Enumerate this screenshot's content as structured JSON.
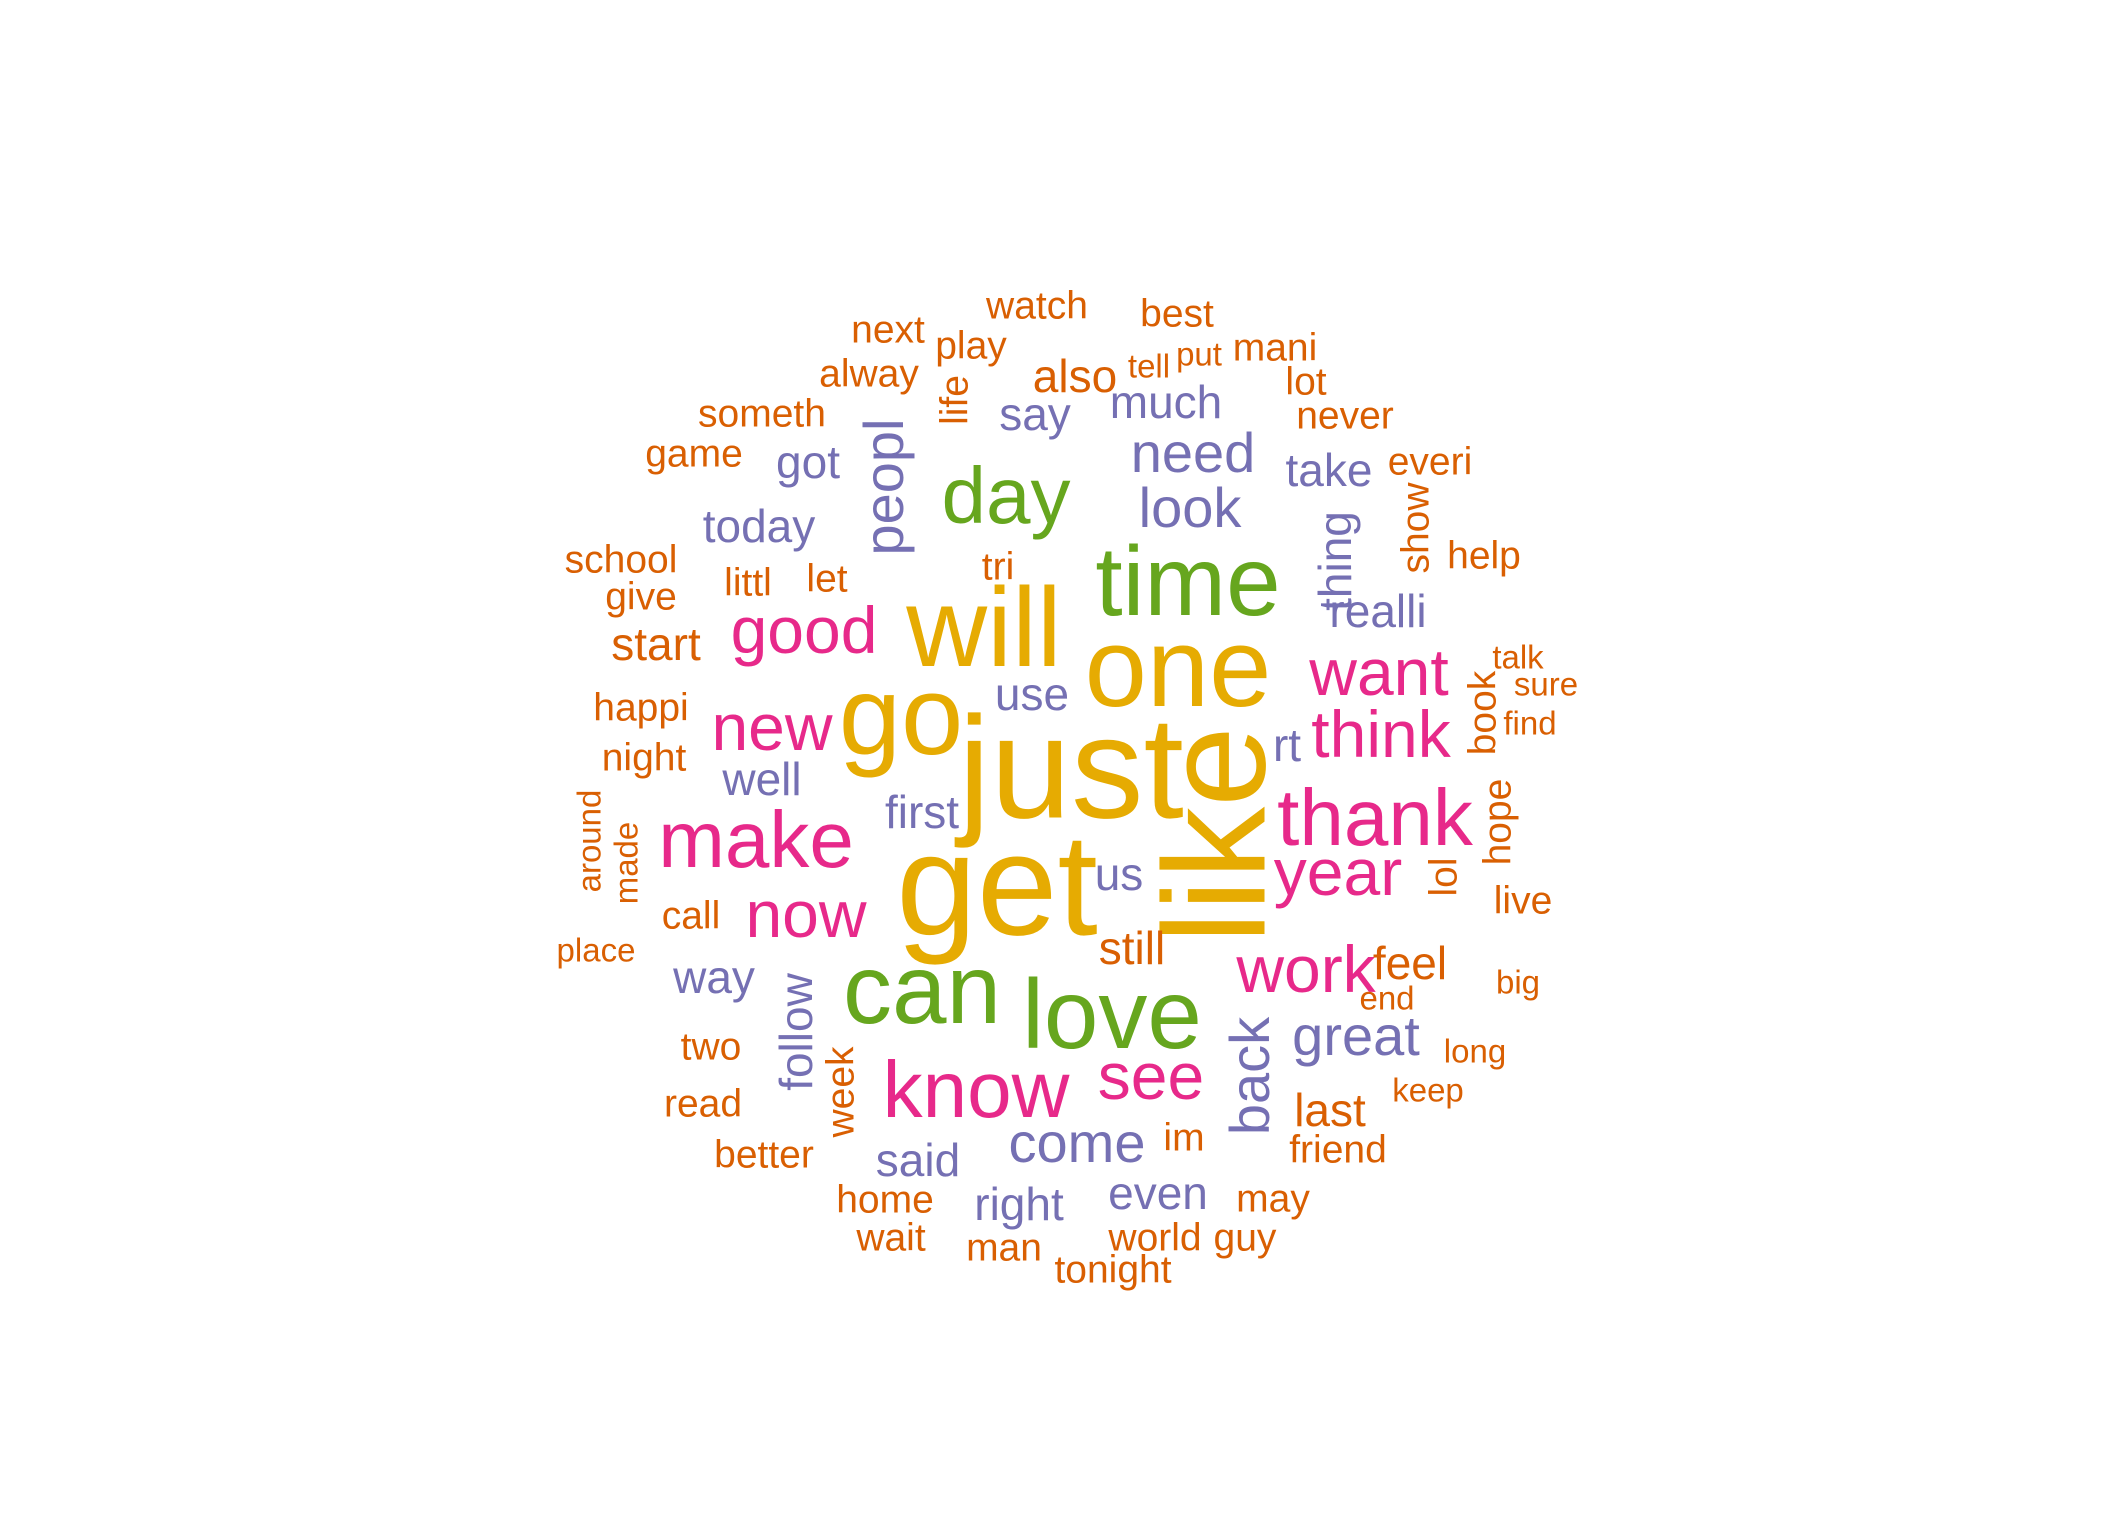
{
  "palette": {
    "gold": "#e6ab02",
    "green": "#66a61e",
    "pink": "#e7298a",
    "purple": "#7570b3",
    "orange": "#d95f02"
  },
  "words": [
    "just",
    "like",
    "get",
    "one",
    "will",
    "go",
    "time",
    "love",
    "can",
    "day",
    "good",
    "make",
    "know",
    "thank",
    "now",
    "new",
    "think",
    "want",
    "see",
    "work",
    "year",
    "look",
    "need",
    "come",
    "great",
    "back",
    "peopl",
    "today",
    "thing",
    "much",
    "say",
    "take",
    "realli",
    "got",
    "use",
    "well",
    "first",
    "us",
    "way",
    "said",
    "right",
    "even",
    "follow",
    "rt",
    "watch",
    "best",
    "next",
    "play",
    "mani",
    "put",
    "tell",
    "alway",
    "also",
    "lot",
    "someth",
    "never",
    "life",
    "game",
    "everi",
    "show",
    "school",
    "help",
    "give",
    "littl",
    "let",
    "tri",
    "start",
    "talk",
    "sure",
    "book",
    "happi",
    "find",
    "night",
    "around",
    "made",
    "hope",
    "lol",
    "live",
    "call",
    "place",
    "still",
    "feel",
    "big",
    "end",
    "two",
    "long",
    "week",
    "keep",
    "read",
    "last",
    "im",
    "friend",
    "better",
    "home",
    "may",
    "wait",
    "man",
    "world",
    "guy",
    "tonight"
  ]
}
